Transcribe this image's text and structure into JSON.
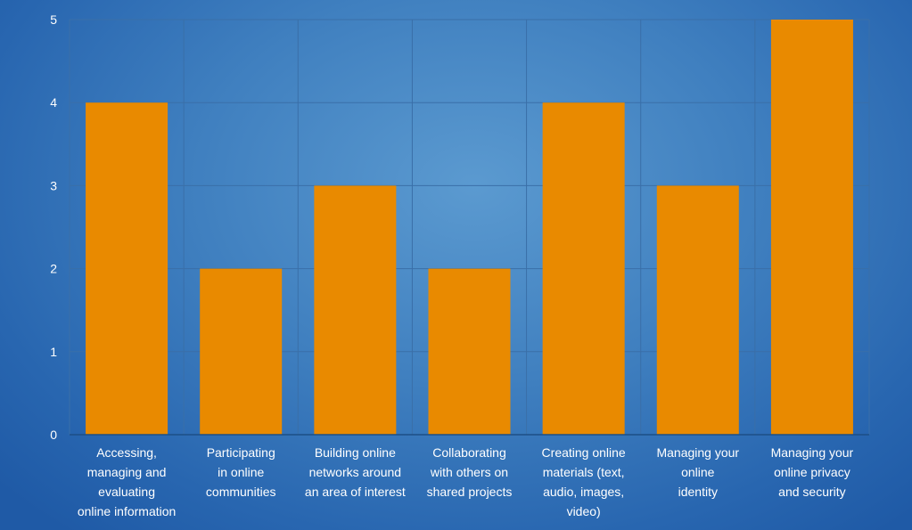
{
  "chart_data": {
    "type": "bar",
    "title": "",
    "xlabel": "",
    "ylabel": "",
    "ylim": [
      0,
      5
    ],
    "yticks": [
      0,
      1,
      2,
      3,
      4,
      5
    ],
    "grid": true,
    "bar_color": "#e98a00",
    "grid_color": "#3a6fa8",
    "categories": [
      [
        "Accessing,",
        "managing and",
        "evaluating",
        "online information"
      ],
      [
        "Participating",
        "in online",
        "communities"
      ],
      [
        "Building online",
        "networks around",
        "an area of interest"
      ],
      [
        "Collaborating",
        "with others on",
        "shared projects"
      ],
      [
        "Creating online",
        "materials (text,",
        "audio, images,",
        "video)"
      ],
      [
        "Managing your",
        "online",
        "identity"
      ],
      [
        "Managing your",
        "online privacy",
        "and security"
      ]
    ],
    "values": [
      4,
      2,
      3,
      2,
      4,
      3,
      5
    ]
  }
}
